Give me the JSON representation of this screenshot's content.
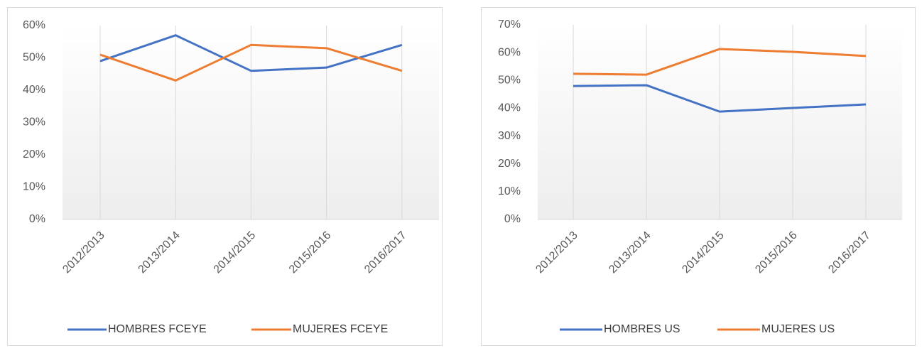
{
  "chart_data": [
    {
      "type": "line",
      "categories": [
        "2012/2013",
        "2013/2014",
        "2014/2015",
        "2015/2016",
        "2016/2017"
      ],
      "series": [
        {
          "name": "HOMBRES FCEYE",
          "color": "#4472c4",
          "values": [
            49,
            57,
            46,
            47,
            54
          ]
        },
        {
          "name": "MUJERES FCEYE",
          "color": "#ed7d31",
          "values": [
            51,
            43,
            54,
            53,
            46
          ]
        }
      ],
      "ylim": [
        0,
        60
      ],
      "yticks": [
        {
          "value": 0,
          "label": "0%"
        },
        {
          "value": 10,
          "label": "10%"
        },
        {
          "value": 20,
          "label": "20%"
        },
        {
          "value": 30,
          "label": "30%"
        },
        {
          "value": 40,
          "label": "40%"
        },
        {
          "value": 50,
          "label": "50%"
        },
        {
          "value": 60,
          "label": "60%"
        }
      ],
      "grid": "x",
      "legend": "bottom"
    },
    {
      "type": "line",
      "categories": [
        "2012/2013",
        "2013/2014",
        "2014/2015",
        "2015/2016",
        "2016/2017"
      ],
      "series": [
        {
          "name": "HOMBRES US",
          "color": "#4472c4",
          "values": [
            48.0,
            48.3,
            38.8,
            40.1,
            41.4
          ]
        },
        {
          "name": "MUJERES US",
          "color": "#ed7d31",
          "values": [
            52.4,
            52.1,
            61.3,
            60.3,
            58.8
          ]
        }
      ],
      "ylim": [
        0,
        70
      ],
      "yticks": [
        {
          "value": 0,
          "label": "0%"
        },
        {
          "value": 10,
          "label": "10%"
        },
        {
          "value": 20,
          "label": "20%"
        },
        {
          "value": 30,
          "label": "30%"
        },
        {
          "value": 40,
          "label": "40%"
        },
        {
          "value": 50,
          "label": "50%"
        },
        {
          "value": 60,
          "label": "60%"
        },
        {
          "value": 70,
          "label": "70%"
        }
      ],
      "grid": "x",
      "legend": "bottom"
    }
  ]
}
